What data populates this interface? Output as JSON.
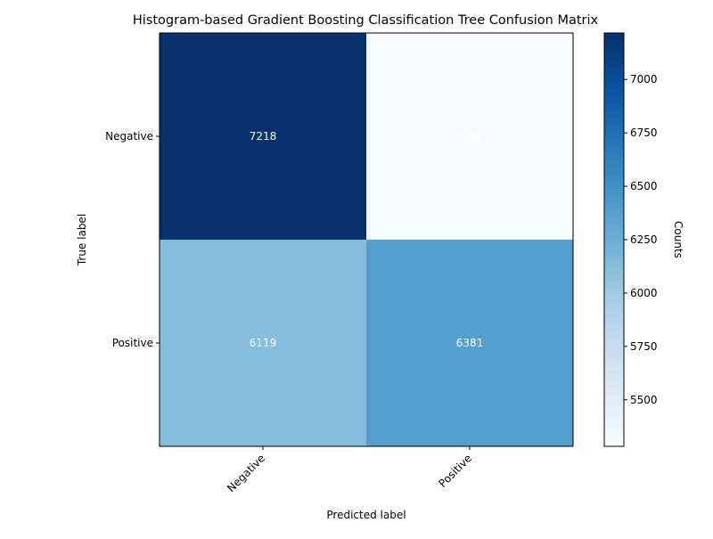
{
  "chart_data": {
    "type": "heatmap",
    "title": "Histogram-based Gradient Boosting Classification Tree Confusion Matrix",
    "xlabel": "Predicted label",
    "ylabel": "True label",
    "x_categories": [
      "Negative",
      "Positive"
    ],
    "y_categories": [
      "Negative",
      "Positive"
    ],
    "values": [
      [
        7218,
        5282
      ],
      [
        6119,
        6381
      ]
    ],
    "colormap": "Blues",
    "color_range": [
      5282,
      7218
    ],
    "colorbar": {
      "label": "Counts",
      "ticks": [
        5500,
        5750,
        6000,
        6250,
        6500,
        6750,
        7000
      ]
    },
    "cell_text_color": "#ffffff"
  }
}
